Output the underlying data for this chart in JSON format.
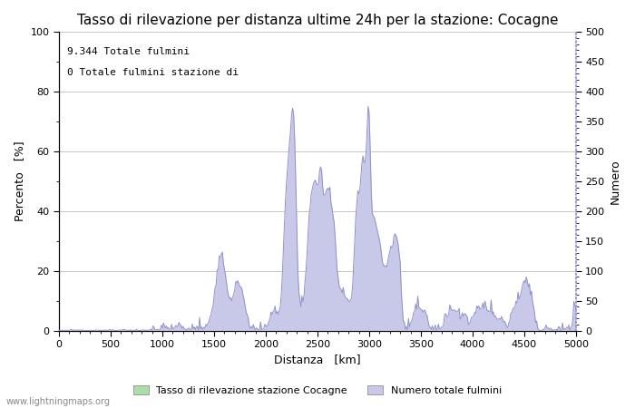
{
  "title": "Tasso di rilevazione per distanza ultime 24h per la stazione: Cocagne",
  "xlabel": "Distanza   [km]",
  "ylabel_left": "Percento   [%]",
  "ylabel_right": "Numero",
  "annotation_line1": "9.344 Totale fulmini",
  "annotation_line2": "0 Totale fulmini stazione di",
  "legend_label1": "Tasso di rilevazione stazione Cocagne",
  "legend_label2": "Numero totale fulmini",
  "xlim": [
    0,
    5000
  ],
  "ylim_left": [
    0,
    100
  ],
  "ylim_right": [
    0,
    500
  ],
  "yticks_left": [
    0,
    20,
    40,
    60,
    80,
    100
  ],
  "yticks_right": [
    0,
    50,
    100,
    150,
    200,
    250,
    300,
    350,
    400,
    450,
    500
  ],
  "xticks": [
    0,
    500,
    1000,
    1500,
    2000,
    2500,
    3000,
    3500,
    4000,
    4500,
    5000
  ],
  "bg_color": "#ffffff",
  "plot_bg_color": "#ffffff",
  "grid_color": "#b0b0b0",
  "line_color": "#9090cc",
  "fill_color_detection": "#aaddaa",
  "fill_color_total": "#c8c8e8",
  "watermark": "www.lightningmaps.org",
  "title_fontsize": 11,
  "label_fontsize": 9,
  "tick_fontsize": 8,
  "annotation_fontsize": 8
}
